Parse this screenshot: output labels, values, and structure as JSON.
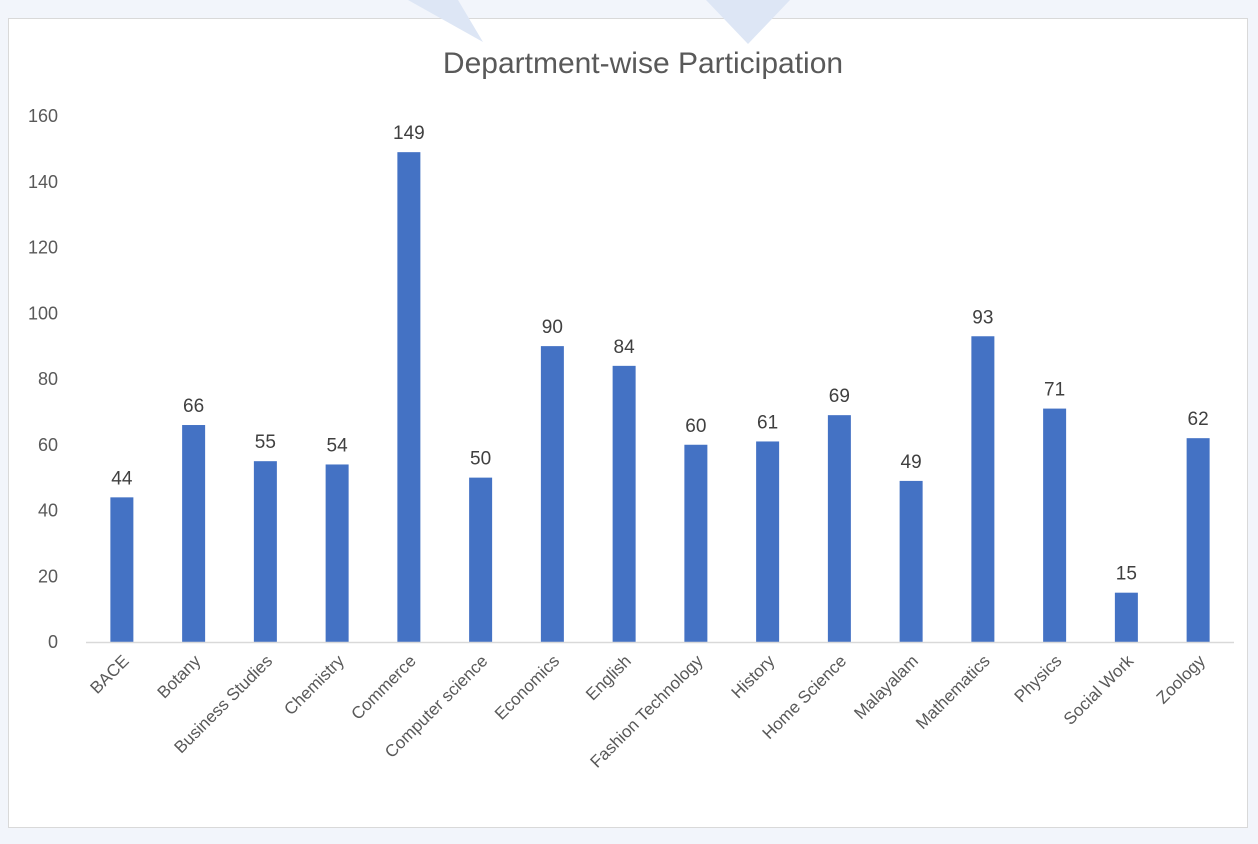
{
  "chart_data": {
    "type": "bar",
    "title": "Department-wise Participation",
    "xlabel": "",
    "ylabel": "",
    "ylim": [
      0,
      160
    ],
    "yticks": [
      0,
      20,
      40,
      60,
      80,
      100,
      120,
      140,
      160
    ],
    "grid": false,
    "legend": "none",
    "categories": [
      "BACE",
      "Botany",
      "Business Studies",
      "Chemistry",
      "Commerce",
      "Computer science",
      "Economics",
      "English",
      "Fashion Technology",
      "History",
      "Home Science",
      "Malayalam",
      "Mathematics",
      "Physics",
      "Social Work",
      "Zoology"
    ],
    "values": [
      44,
      66,
      55,
      54,
      149,
      50,
      90,
      84,
      60,
      61,
      69,
      49,
      93,
      71,
      15,
      62
    ],
    "bar_color": "#4472c4",
    "axis_color": "#d9d9d9",
    "watermark_color": "#dde6f5"
  }
}
